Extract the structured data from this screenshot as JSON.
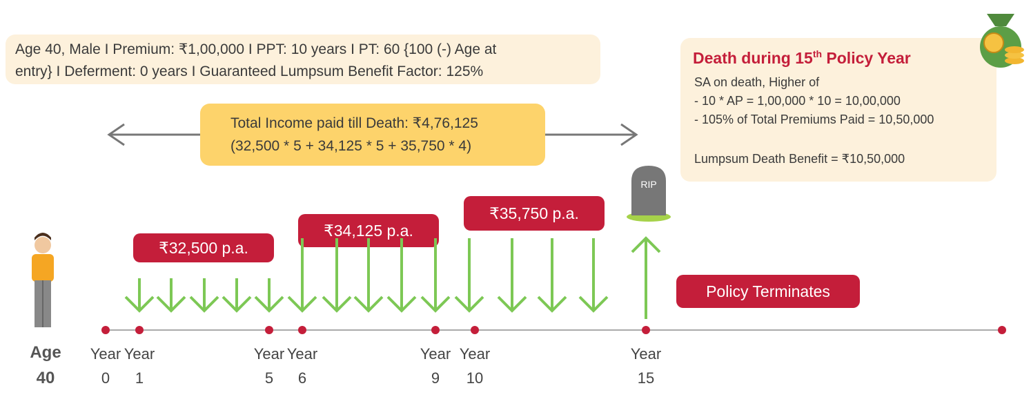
{
  "info": {
    "lines": [
      "Age 40, Male  I  Premium: ₹1,00,000  I  PPT: 10 years  I  PT: 60 {100 (-) Age at",
      "entry}  I  Deferment: 0 years  I  Guaranteed Lumpsum Benefit Factor: 125%"
    ]
  },
  "death_box": {
    "title_pre": "Death during 15",
    "title_sup": "th",
    "title_post": " Policy Year",
    "lines": [
      "SA on death, Higher of",
      "- 10 * AP = 1,00,000 * 10 = 10,00,000",
      "- 105% of Total Premiums Paid = 10,50,000"
    ],
    "result": "Lumpsum Death Benefit = ₹10,50,000"
  },
  "total_income": {
    "lines": [
      "Total Income paid till Death: ₹4,76,125",
      "(32,500 * 5 + 34,125 * 5 + 35,750 * 4)"
    ]
  },
  "income_labels": [
    "₹32,500 p.a.",
    "₹34,125 p.a.",
    "₹35,750 p.a."
  ],
  "terminates": "Policy Terminates",
  "tomb": "RIP",
  "age": {
    "label": "Age",
    "value": "40"
  },
  "years": [
    {
      "top": "Year",
      "bottom": "0"
    },
    {
      "top": "Year",
      "bottom": "1"
    },
    {
      "top": "Year",
      "bottom": "5"
    },
    {
      "top": "Year",
      "bottom": "6"
    },
    {
      "top": "Year",
      "bottom": "9"
    },
    {
      "top": "Year",
      "bottom": "10"
    },
    {
      "top": "Year",
      "bottom": "15"
    }
  ]
}
